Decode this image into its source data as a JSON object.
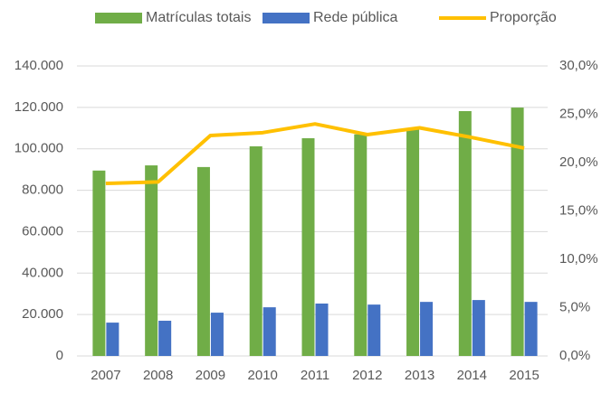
{
  "chart_data": {
    "type": "bar",
    "categories": [
      "2007",
      "2008",
      "2009",
      "2010",
      "2011",
      "2012",
      "2013",
      "2014",
      "2015"
    ],
    "series": [
      {
        "name": "Matrículas totais",
        "color": "#70ad47",
        "values": [
          89500,
          92000,
          91200,
          101200,
          105100,
          107000,
          110000,
          118200,
          119900
        ]
      },
      {
        "name": "Rede pública",
        "color": "#4472c4",
        "values": [
          16100,
          17000,
          20900,
          23500,
          25300,
          24800,
          26100,
          27000,
          26100
        ]
      },
      {
        "name": "Proporção",
        "color": "#ffc000",
        "type": "line",
        "axis": "y2",
        "values": [
          17.85,
          18.0,
          22.8,
          23.1,
          24.0,
          22.9,
          23.6,
          22.6,
          21.5
        ]
      }
    ],
    "ylim": [
      0,
      140000
    ],
    "yticks": [
      0,
      {
        "value": 20000,
        "label": "20.000"
      },
      {
        "value": 40000,
        "label": "40.000"
      },
      {
        "value": 60000,
        "label": "60.000"
      },
      {
        "value": 80000,
        "label": "80.000"
      },
      {
        "value": 100000,
        "label": "100.000"
      },
      {
        "value": 120000,
        "label": "120.000"
      },
      {
        "value": 140000,
        "label": "140.000"
      }
    ],
    "y2lim": [
      0,
      30
    ],
    "y2ticks": [
      {
        "value": 0,
        "label": "0,0%"
      },
      {
        "value": 5,
        "label": "5,0%"
      },
      {
        "value": 10,
        "label": "10,0%"
      },
      {
        "value": 15,
        "label": "15,0%"
      },
      {
        "value": 20,
        "label": "20,0%"
      },
      {
        "value": 25,
        "label": "25,0%"
      },
      {
        "value": 30,
        "label": "30,0%"
      }
    ],
    "grid": true,
    "legend": "top"
  }
}
